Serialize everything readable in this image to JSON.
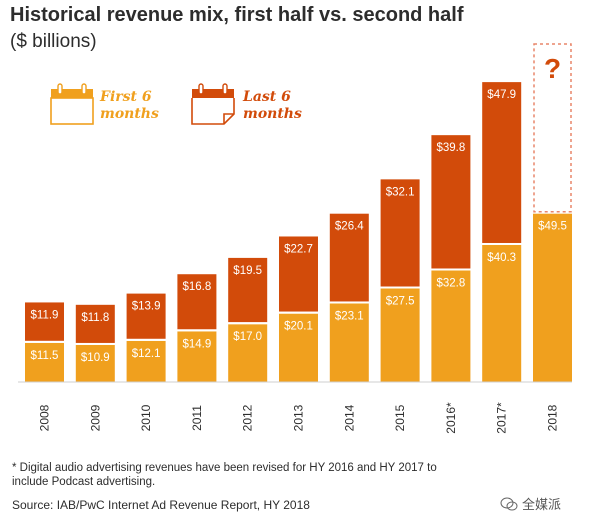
{
  "header": {
    "title": "Historical revenue mix, first half vs. second half",
    "subtitle": "($ billions)"
  },
  "legend": {
    "first_half": "First 6 months",
    "second_half": "Last 6 months"
  },
  "colors": {
    "first_half": "#f0a01e",
    "second_half": "#d24b0a",
    "bar_label_text": "#ffffff",
    "dashed_outline": "#e8866a",
    "question_mark": "#d24b0a"
  },
  "chart_data": {
    "type": "bar",
    "stacked": true,
    "categories": [
      "2008",
      "2009",
      "2010",
      "2011",
      "2012",
      "2013",
      "2014",
      "2015",
      "2016*",
      "2017*",
      "2018"
    ],
    "series": [
      {
        "name": "First 6 months",
        "values": [
          11.5,
          10.9,
          12.1,
          14.9,
          17.0,
          20.1,
          23.1,
          27.5,
          32.8,
          40.3,
          49.5
        ],
        "labels": [
          "$11.5",
          "$10.9",
          "$12.1",
          "$14.9",
          "$17.0",
          "$20.1",
          "$23.1",
          "$27.5",
          "$32.8",
          "$40.3",
          "$49.5"
        ]
      },
      {
        "name": "Last 6 months",
        "values": [
          11.9,
          11.8,
          13.9,
          16.8,
          19.5,
          22.7,
          26.4,
          32.1,
          39.8,
          47.9,
          null
        ],
        "labels": [
          "$11.9",
          "$11.8",
          "$13.9",
          "$16.8",
          "$19.5",
          "$22.7",
          "$26.4",
          "$32.1",
          "$39.8",
          "$47.9",
          ""
        ]
      }
    ],
    "unknown_second_half_marker": "?",
    "ylim": [
      0,
      95
    ],
    "grid": false,
    "legend_position": "top-left"
  },
  "footnote": "* Digital audio advertising revenues have been revised for HY 2016 and HY 2017 to include Podcast advertising.",
  "source": "Source: IAB/PwC Internet Ad Revenue Report, HY 2018",
  "watermark": "全媒派"
}
